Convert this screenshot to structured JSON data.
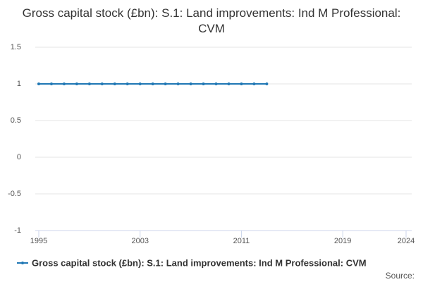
{
  "chart_data": {
    "type": "line",
    "title": "Gross capital stock (£bn): S.1: Land improvements: Ind M Professional: CVM",
    "x": [
      1995,
      1996,
      1997,
      1998,
      1999,
      2000,
      2001,
      2002,
      2003,
      2004,
      2005,
      2006,
      2007,
      2008,
      2009,
      2010,
      2011,
      2012,
      2013
    ],
    "series": [
      {
        "name": "Gross capital stock (£bn): S.1: Land improvements: Ind M Professional: CVM",
        "color": "#1f77b4",
        "values": [
          1,
          1,
          1,
          1,
          1,
          1,
          1,
          1,
          1,
          1,
          1,
          1,
          1,
          1,
          1,
          1,
          1,
          1,
          1
        ]
      }
    ],
    "xlim": [
      1995,
      2024
    ],
    "xticks": [
      1995,
      2003,
      2011,
      2019,
      2024
    ],
    "ylim": [
      -1,
      1.5
    ],
    "yticks": [
      -1,
      -0.5,
      0,
      0.5,
      1,
      1.5
    ],
    "grid": true,
    "legend": "bottom",
    "source": "Source:"
  }
}
